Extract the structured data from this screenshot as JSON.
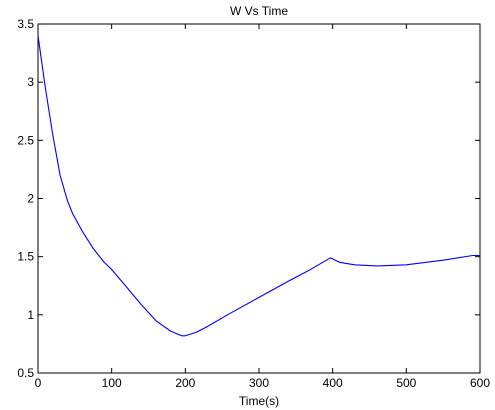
{
  "chart_data": {
    "type": "line",
    "title": "W Vs Time",
    "xlabel": "Time(s)",
    "ylabel": "",
    "xlim": [
      0,
      600
    ],
    "ylim": [
      0.5,
      3.5
    ],
    "xticks": [
      0,
      100,
      200,
      300,
      400,
      500,
      600
    ],
    "xtick_labels": [
      "0",
      "100",
      "200",
      "300",
      "400",
      "500",
      "600"
    ],
    "yticks": [
      0.5,
      1,
      1.5,
      2,
      2.5,
      3,
      3.5
    ],
    "ytick_labels": [
      "0.5",
      "1",
      "1.5",
      "2",
      "2.5",
      "3",
      "3.5"
    ],
    "grid": false,
    "series": [
      {
        "color": "#0000ff",
        "x": [
          0,
          10,
          20,
          30,
          40,
          47,
          60,
          75,
          90,
          100,
          120,
          140,
          160,
          180,
          195,
          200,
          215,
          230,
          260,
          300,
          340,
          370,
          397,
          410,
          430,
          460,
          500,
          550,
          590,
          600
        ],
        "y": [
          3.4,
          2.95,
          2.55,
          2.2,
          1.98,
          1.87,
          1.72,
          1.57,
          1.45,
          1.39,
          1.24,
          1.09,
          0.95,
          0.86,
          0.82,
          0.82,
          0.85,
          0.9,
          1.01,
          1.15,
          1.29,
          1.39,
          1.49,
          1.45,
          1.43,
          1.42,
          1.43,
          1.47,
          1.51,
          1.51
        ]
      }
    ]
  }
}
